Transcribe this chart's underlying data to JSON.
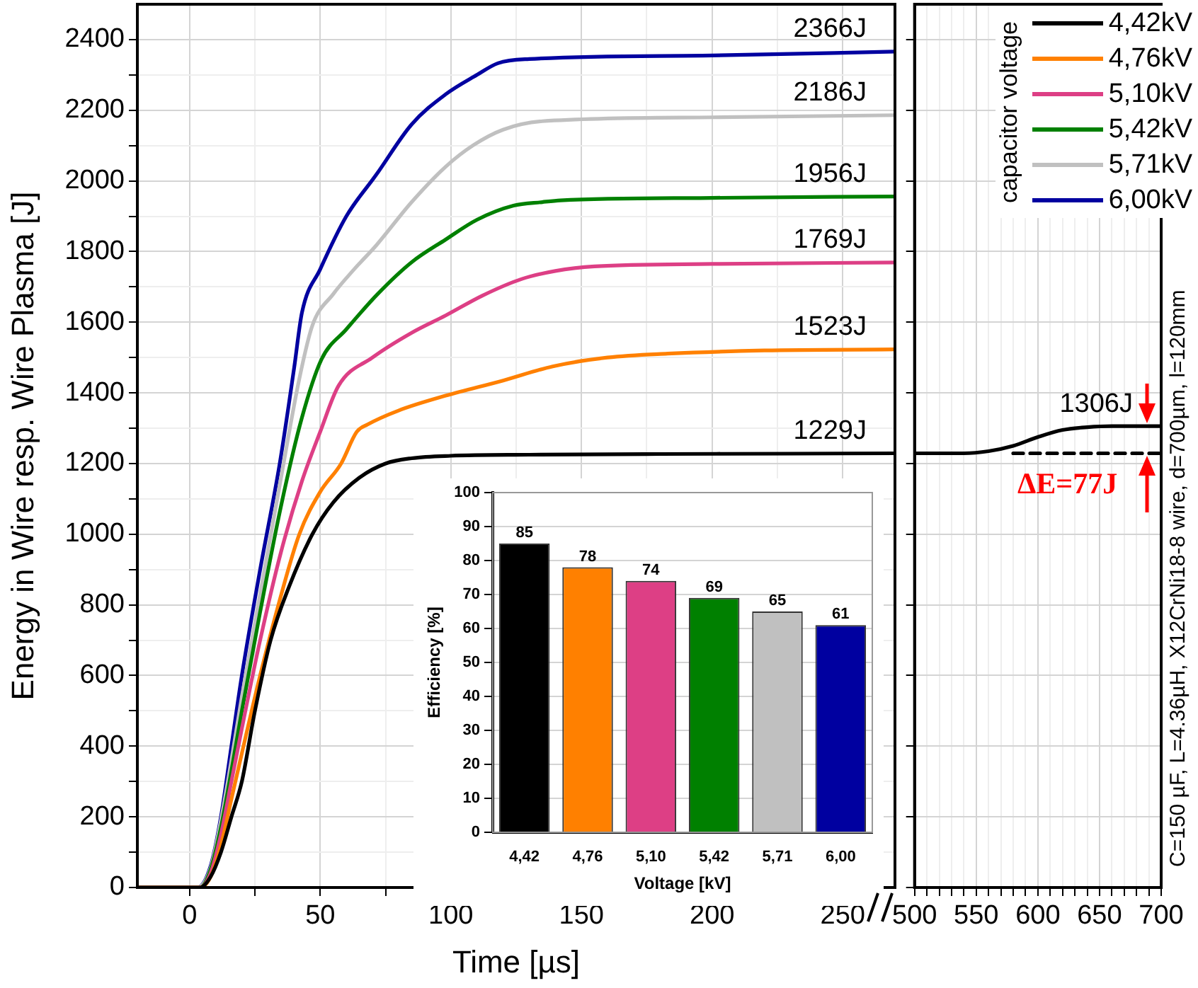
{
  "chart_data": [
    {
      "type": "line",
      "xlabel": "Time [µs]",
      "ylabel": "Energy in Wire resp. Wire Plasma [J]",
      "legend_title": "capacitor voltage",
      "legend": "top right",
      "grid": true,
      "marker": "none",
      "line_style": "solid",
      "xlim": [
        -20,
        270
      ],
      "xticks": [
        0,
        {
          "value": 25,
          "label": null
        },
        50,
        {
          "value": 75,
          "label": null
        },
        100,
        {
          "value": 125,
          "label": null
        },
        150,
        {
          "value": 175,
          "label": null
        },
        200,
        {
          "value": 225,
          "label": null
        },
        250
      ],
      "ylim": [
        0,
        2500
      ],
      "yticks": [
        0,
        {
          "value": 100,
          "label": null
        },
        200,
        {
          "value": 300,
          "label": null
        },
        400,
        {
          "value": 500,
          "label": null
        },
        600,
        {
          "value": 700,
          "label": null
        },
        800,
        {
          "value": 900,
          "label": null
        },
        1000,
        {
          "value": 1100,
          "label": null
        },
        1200,
        {
          "value": 1300,
          "label": null
        },
        1400,
        {
          "value": 1500,
          "label": null
        },
        1600,
        {
          "value": 1700,
          "label": null
        },
        1800,
        {
          "value": 1900,
          "label": null
        },
        2000,
        {
          "value": 2100,
          "label": null
        },
        2200,
        {
          "value": 2300,
          "label": null
        },
        2400
      ],
      "series": [
        {
          "name": "4,42kV",
          "color": "#000000",
          "x": [
            -20,
            4,
            8,
            12,
            16,
            20,
            25,
            31,
            38,
            47,
            55,
            65,
            75,
            85,
            100,
            130,
            180,
            230,
            270
          ],
          "values": [
            0,
            0,
            30,
            100,
            200,
            300,
            500,
            700,
            850,
            1000,
            1090,
            1160,
            1200,
            1215,
            1222,
            1225,
            1227,
            1228,
            1229
          ],
          "value_labels": [
            null,
            null,
            null,
            null,
            null,
            null,
            null,
            null,
            null,
            null,
            null,
            null,
            null,
            null,
            null,
            null,
            null,
            null,
            "1229J"
          ]
        },
        {
          "name": "4,76kV",
          "color": "#ff8000",
          "x": [
            -20,
            4,
            8,
            12,
            16,
            20,
            27,
            34,
            42,
            50,
            58,
            64,
            68,
            80,
            98,
            120,
            139,
            160,
            183,
            220,
            270
          ],
          "values": [
            0,
            0,
            30,
            120,
            250,
            380,
            600,
            800,
            1000,
            1120,
            1200,
            1290,
            1310,
            1350,
            1392,
            1435,
            1475,
            1500,
            1511,
            1520,
            1523
          ],
          "value_labels": [
            null,
            null,
            null,
            null,
            null,
            null,
            null,
            null,
            null,
            null,
            null,
            null,
            null,
            null,
            null,
            null,
            null,
            null,
            null,
            null,
            "1523J"
          ]
        },
        {
          "name": "5,10kV",
          "color": "#dd3f85",
          "x": [
            -20,
            4,
            8,
            12,
            16,
            20,
            27,
            35,
            43,
            50,
            57,
            70,
            85,
            98,
            112,
            127,
            140,
            155,
            200,
            270
          ],
          "values": [
            0,
            0,
            40,
            150,
            300,
            450,
            700,
            950,
            1150,
            1290,
            1420,
            1500,
            1570,
            1619,
            1675,
            1722,
            1745,
            1758,
            1765,
            1769
          ],
          "value_labels": [
            null,
            null,
            null,
            null,
            null,
            null,
            null,
            null,
            null,
            null,
            null,
            null,
            null,
            null,
            null,
            null,
            null,
            null,
            null,
            "1769J"
          ]
        },
        {
          "name": "5,42kV",
          "color": "#008000",
          "x": [
            -20,
            4,
            8,
            12,
            16,
            20,
            27,
            35,
            43,
            50.5,
            60,
            72,
            85,
            98,
            110,
            124,
            135,
            142,
            200,
            270
          ],
          "values": [
            0,
            0,
            50,
            170,
            330,
            500,
            780,
            1080,
            1330,
            1495,
            1580,
            1680,
            1770,
            1834,
            1890,
            1930,
            1940,
            1945,
            1952,
            1956
          ],
          "value_labels": [
            null,
            null,
            null,
            null,
            null,
            null,
            null,
            null,
            null,
            null,
            null,
            null,
            null,
            null,
            null,
            null,
            null,
            null,
            null,
            "1956J"
          ]
        },
        {
          "name": "5,71kV",
          "color": "#c0c0c0",
          "x": [
            -20,
            3,
            8,
            12,
            16,
            20,
            27,
            35,
            42,
            47,
            55,
            63,
            71.5,
            85,
            98,
            108.6,
            120,
            135,
            200,
            270
          ],
          "values": [
            0,
            0,
            55,
            190,
            360,
            540,
            830,
            1160,
            1440,
            1591,
            1680,
            1750,
            1818,
            1940,
            2040,
            2101,
            2145,
            2169,
            2180,
            2186
          ],
          "value_labels": [
            null,
            null,
            null,
            null,
            null,
            null,
            null,
            null,
            null,
            null,
            null,
            null,
            null,
            null,
            null,
            null,
            null,
            null,
            null,
            "2186J"
          ]
        },
        {
          "name": "6,00kV",
          "color": "#0000a0",
          "x": [
            -20,
            3,
            8,
            12,
            16,
            20,
            27,
            34.5,
            40,
            43,
            50,
            60,
            71.5,
            85,
            98,
            110,
            118,
            130,
            200,
            270
          ],
          "values": [
            0,
            0,
            60,
            200,
            400,
            600,
            900,
            1200,
            1470,
            1627,
            1750,
            1900,
            2018,
            2160,
            2245,
            2300,
            2333,
            2345,
            2355,
            2366
          ],
          "value_labels": [
            null,
            null,
            null,
            null,
            null,
            null,
            null,
            null,
            null,
            null,
            null,
            null,
            null,
            null,
            null,
            null,
            null,
            null,
            null,
            "2366J"
          ]
        }
      ]
    },
    {
      "type": "line",
      "grid": true,
      "marker": "none",
      "tick_labels": "x",
      "xlim": [
        500,
        700
      ],
      "xticks": [
        500,
        {
          "value": 510,
          "label": null
        },
        {
          "value": 520,
          "label": null
        },
        {
          "value": 530,
          "label": null
        },
        {
          "value": 540,
          "label": null
        },
        550,
        {
          "value": 560,
          "label": null
        },
        {
          "value": 570,
          "label": null
        },
        {
          "value": 580,
          "label": null
        },
        {
          "value": 590,
          "label": null
        },
        600,
        {
          "value": 610,
          "label": null
        },
        {
          "value": 620,
          "label": null
        },
        {
          "value": 630,
          "label": null
        },
        {
          "value": 640,
          "label": null
        },
        650,
        {
          "value": 660,
          "label": null
        },
        {
          "value": 670,
          "label": null
        },
        {
          "value": 680,
          "label": null
        },
        {
          "value": 690,
          "label": null
        },
        700
      ],
      "ylim": [
        0,
        2500
      ],
      "yticks": [
        0,
        200,
        400,
        600,
        800,
        1000,
        1200,
        1400,
        1600,
        1800,
        2000,
        2200,
        2400
      ],
      "series": [
        {
          "color": "#000000",
          "x": [
            500,
            540,
            560,
            580,
            600,
            620,
            640,
            660,
            700
          ],
          "values": [
            1229,
            1229,
            1235,
            1250,
            1275,
            1295,
            1303,
            1306,
            1306
          ],
          "value_labels": [
            null,
            null,
            null,
            null,
            null,
            null,
            null,
            null,
            "1306J"
          ]
        },
        {
          "color": "#000000",
          "line_style": "dashed",
          "x": [
            580,
            700
          ],
          "values": [
            1229,
            1229
          ]
        }
      ],
      "annotations": [
        "ΔE=77J",
        "C=150 µF, L=4.36µH, X12CrNi18-8 wire, d=700µm, l=120mm"
      ]
    },
    {
      "type": "bar",
      "xlabel": "Voltage [kV]",
      "ylabel": "Efficiency [%]",
      "categories": [
        "4,42",
        "4,76",
        "5,10",
        "5,42",
        "5,71",
        "6,00"
      ],
      "values": [
        85,
        78,
        74,
        69,
        65,
        61
      ],
      "colors": [
        "#000000",
        "#ff8000",
        "#dd3f85",
        "#008000",
        "#c0c0c0",
        "#0000a0"
      ],
      "ylim": [
        0,
        100
      ],
      "yticks": [
        0,
        10,
        20,
        30,
        40,
        50,
        60,
        70,
        80,
        90,
        100
      ],
      "grid": "y",
      "data_labels": true
    }
  ]
}
